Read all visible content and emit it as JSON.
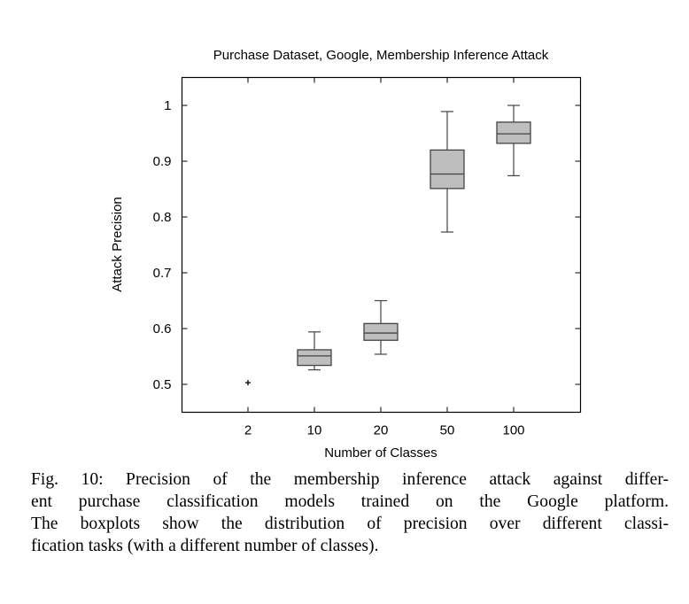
{
  "chart_data": {
    "type": "boxplot",
    "title": "Purchase Dataset, Google, Membership Inference Attack",
    "xlabel": "Number of Classes",
    "ylabel": "Attack Precision",
    "categories": [
      "2",
      "10",
      "20",
      "50",
      "100"
    ],
    "yticks": [
      0.5,
      0.6,
      0.7,
      0.8,
      0.9,
      1
    ],
    "ytick_labels": [
      "0.5",
      "0.6",
      "0.7",
      "0.8",
      "0.9",
      "1"
    ],
    "ylim": [
      0.45,
      1.05
    ],
    "grid": false,
    "box_color": "#bebebe",
    "line_color": "#444444",
    "boxes": [
      {
        "category": "2",
        "point": 0.503
      },
      {
        "category": "10",
        "whisker_low": 0.526,
        "q1": 0.534,
        "median": 0.551,
        "q3": 0.562,
        "whisker_high": 0.594
      },
      {
        "category": "20",
        "whisker_low": 0.554,
        "q1": 0.579,
        "median": 0.592,
        "q3": 0.609,
        "whisker_high": 0.65
      },
      {
        "category": "50",
        "whisker_low": 0.773,
        "q1": 0.851,
        "median": 0.877,
        "q3": 0.92,
        "whisker_high": 0.989
      },
      {
        "category": "100",
        "whisker_low": 0.874,
        "q1": 0.932,
        "median": 0.949,
        "q3": 0.97,
        "whisker_high": 1.0
      }
    ]
  },
  "caption": {
    "lines": [
      "Fig. 10: Precision of the membership inference attack against differ-",
      "ent purchase classification models trained on the Google platform.",
      "The boxplots show the distribution of precision over different classi-",
      "fication tasks (with a different number of classes)."
    ]
  }
}
